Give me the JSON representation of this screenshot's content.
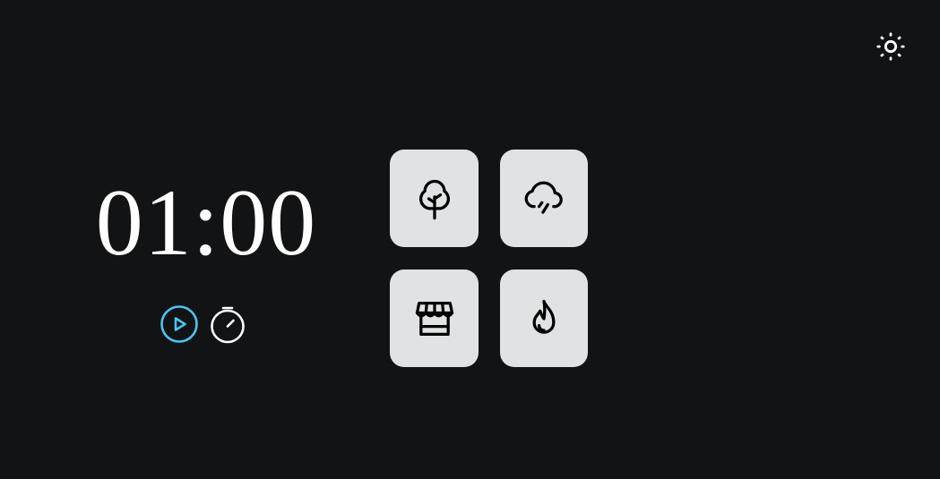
{
  "timer": {
    "display": "01:00"
  },
  "controls": {
    "play_icon": "play-circle-icon",
    "stopwatch_icon": "stopwatch-icon"
  },
  "theme_toggle": {
    "icon": "sun-icon"
  },
  "sounds": [
    {
      "icon": "tree-icon"
    },
    {
      "icon": "rain-cloud-icon"
    },
    {
      "icon": "store-icon"
    },
    {
      "icon": "fire-icon"
    }
  ],
  "colors": {
    "background": "#121315",
    "tile": "#e0e2e3",
    "accent": "#4cc3f1",
    "text": "#ffffff"
  }
}
